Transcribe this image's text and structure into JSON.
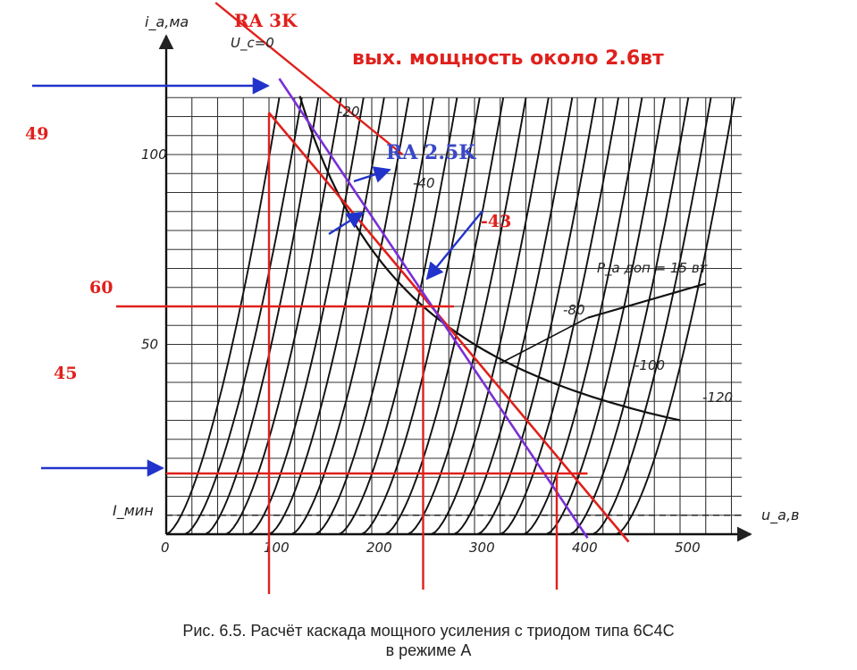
{
  "chart_data": {
    "type": "line",
    "xlabel": "u_a,в",
    "ylabel": "i_a,ма",
    "x_ticks": [
      "0",
      "100",
      "200",
      "300",
      "400",
      "500"
    ],
    "y_ticks": [
      "50",
      "100"
    ],
    "xlim": [
      0,
      560
    ],
    "ylim": [
      0,
      120
    ],
    "i_min_label": "I_мин",
    "i_min_value": 5,
    "grid": true,
    "power_limit_label": "P_a доп = 15 вт",
    "power_limit_watts": 15,
    "grid_voltage_labels": [
      {
        "text": "U_c=0",
        "ug": 0
      },
      {
        "text": "-20",
        "ug": -20
      },
      {
        "text": "-40",
        "ug": -40
      },
      {
        "text": "-80",
        "ug": -80
      },
      {
        "text": "-100",
        "ug": -100
      },
      {
        "text": "-120",
        "ug": -120
      }
    ],
    "curves": [
      {
        "ug": 0,
        "x0": 0,
        "x1": 110
      },
      {
        "ug": -10,
        "x0": 18,
        "x1": 132
      },
      {
        "ug": -20,
        "x0": 38,
        "x1": 148
      },
      {
        "ug": -30,
        "x0": 58,
        "x1": 170
      },
      {
        "ug": -40,
        "x0": 80,
        "x1": 192
      },
      {
        "ug": -50,
        "x0": 100,
        "x1": 212
      },
      {
        "ug": -60,
        "x0": 122,
        "x1": 236
      },
      {
        "ug": -70,
        "x0": 145,
        "x1": 260
      },
      {
        "ug": -80,
        "x0": 168,
        "x1": 283
      },
      {
        "ug": -90,
        "x0": 190,
        "x1": 305
      },
      {
        "ug": -100,
        "x0": 213,
        "x1": 328
      },
      {
        "ug": -110,
        "x0": 235,
        "x1": 350
      },
      {
        "ug": -120,
        "x0": 258,
        "x1": 372
      },
      {
        "ug": -130,
        "x0": 280,
        "x1": 395
      },
      {
        "ug": -140,
        "x0": 303,
        "x1": 418
      },
      {
        "ug": -150,
        "x0": 325,
        "x1": 440
      },
      {
        "ug": -160,
        "x0": 348,
        "x1": 463
      },
      {
        "ug": -170,
        "x0": 370,
        "x1": 485
      },
      {
        "ug": -180,
        "x0": 393,
        "x1": 508
      },
      {
        "ug": -190,
        "x0": 415,
        "x1": 530
      },
      {
        "ug": -200,
        "x0": 438,
        "x1": 553
      }
    ],
    "load_lines": [
      {
        "name": "RA 3K",
        "color": "#e0201c",
        "from": [
          100,
          111
        ],
        "to": [
          450,
          -2
        ]
      },
      {
        "name": "RA 2.5K",
        "color": "#7a2fd6",
        "from": [
          110,
          120
        ],
        "to": [
          410,
          -1
        ]
      }
    ],
    "operating_point": {
      "ua": 250,
      "ia": 60,
      "ug": -43
    },
    "markers": {
      "ua_left": 100,
      "ua_mid": 250,
      "ua_right": 380,
      "ia_top": 111,
      "ia_mid": 60,
      "ia_bottom": 16
    },
    "annotations": {
      "title": "вых. мощность  около 2.6вт",
      "ra3k": "RA 3K",
      "ra25k": "RA 2.5K",
      "bias": "-43",
      "n49": "49",
      "n60": "60",
      "n45": "45"
    }
  },
  "caption": {
    "line1": "Рис. 6.5. Расчёт каскада мощного усиления с триодом типа 6С4С",
    "line2": "в режиме А"
  }
}
